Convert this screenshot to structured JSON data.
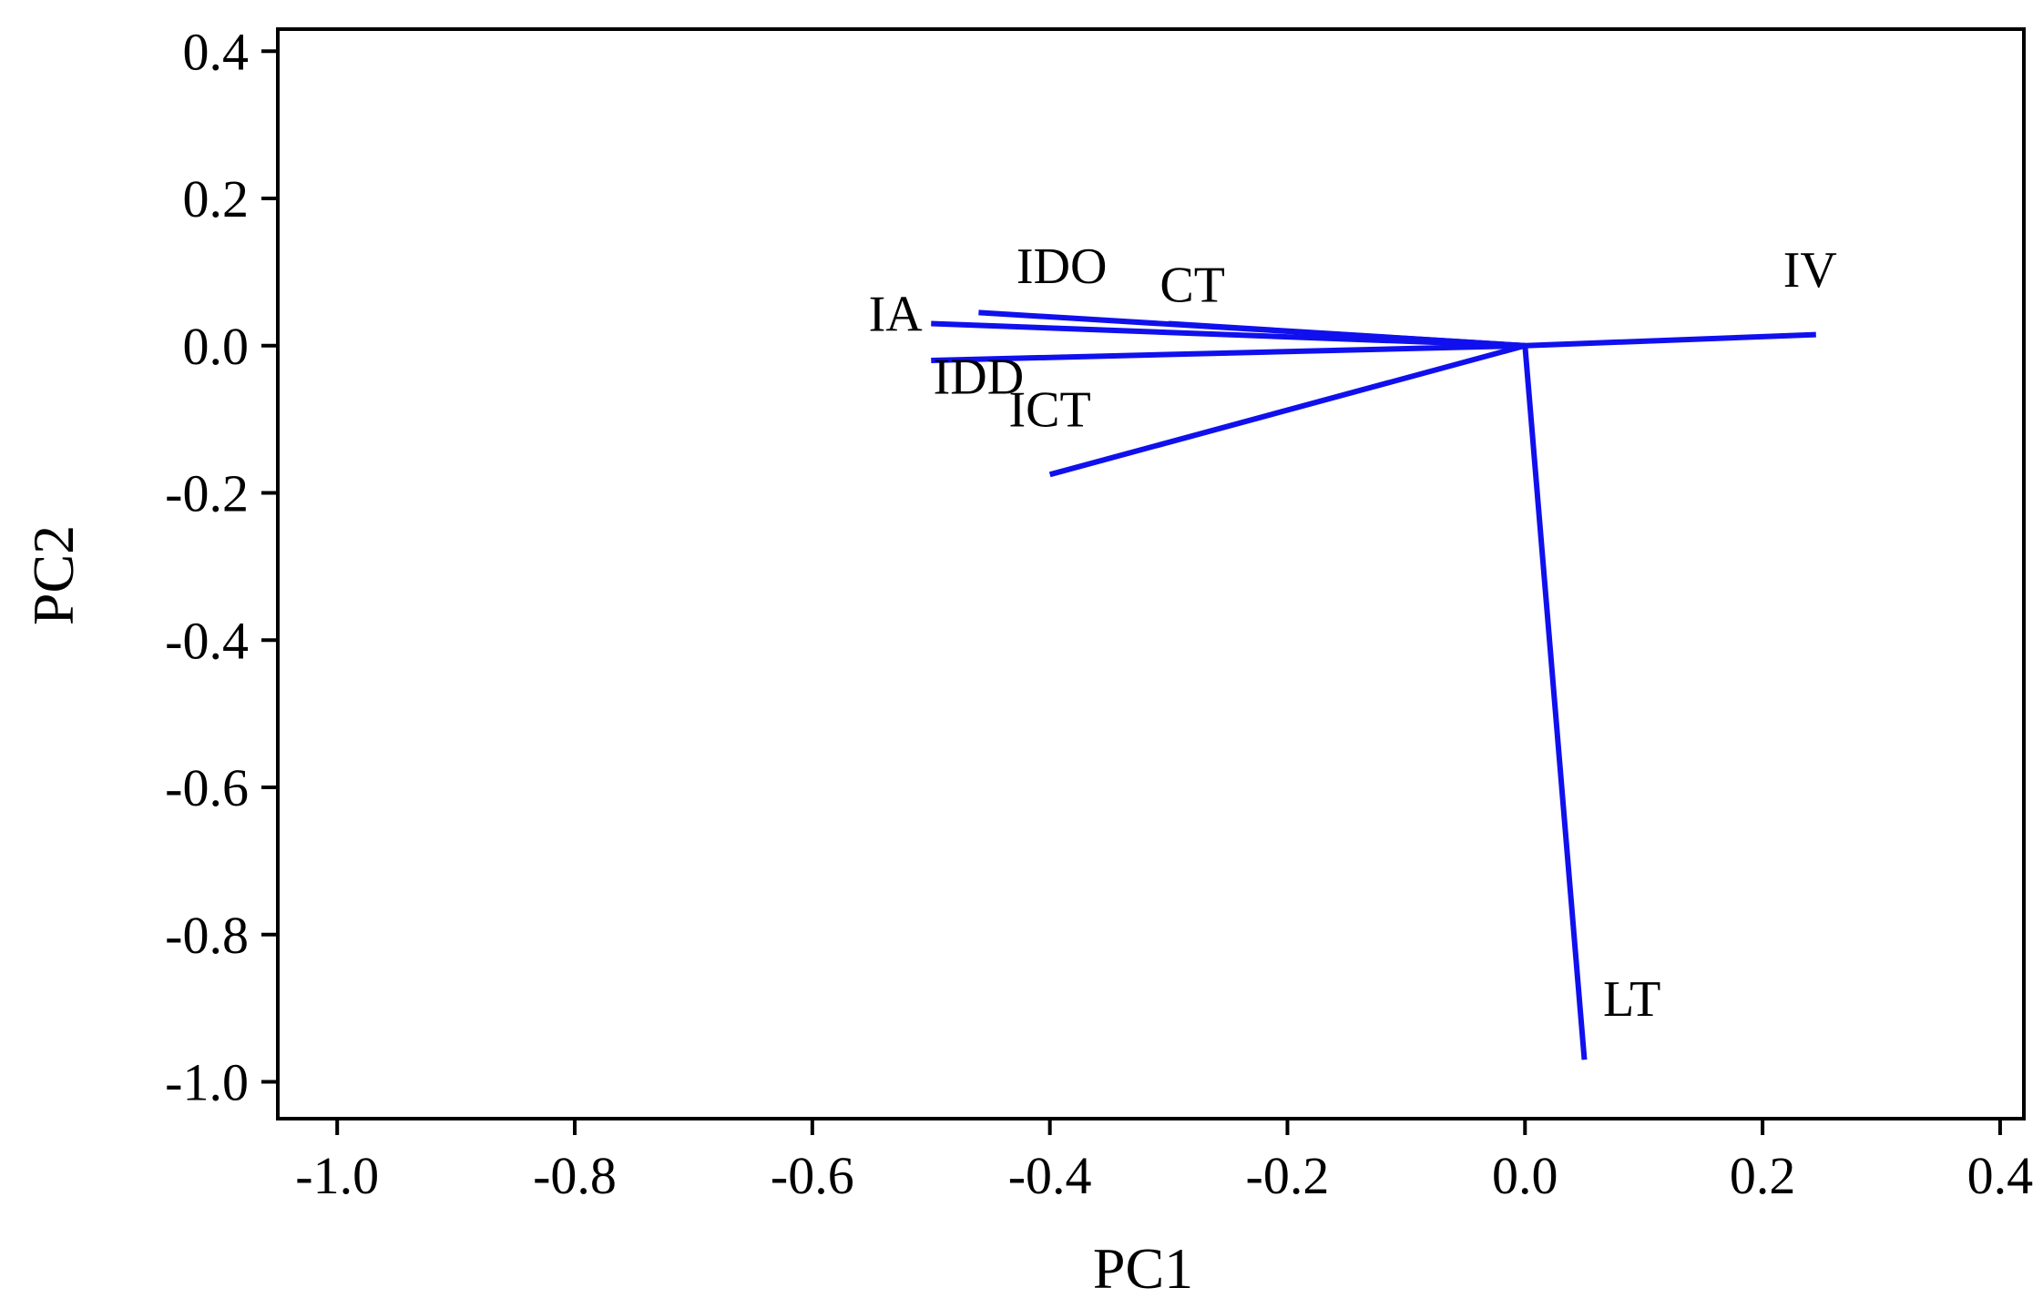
{
  "chart_data": {
    "type": "line",
    "title": "",
    "xlabel": "PC1",
    "ylabel": "PC2",
    "xlim": [
      -1.05,
      0.42
    ],
    "ylim": [
      -1.05,
      0.43
    ],
    "x_ticks": [
      {
        "value": -1.0,
        "label": "-1.0"
      },
      {
        "value": -0.8,
        "label": "-0.8"
      },
      {
        "value": -0.6,
        "label": "-0.6"
      },
      {
        "value": -0.4,
        "label": "-0.4"
      },
      {
        "value": -0.2,
        "label": "-0.2"
      },
      {
        "value": 0.0,
        "label": "0.0"
      },
      {
        "value": 0.2,
        "label": "0.2"
      },
      {
        "value": 0.4,
        "label": "0.4"
      }
    ],
    "y_ticks": [
      {
        "value": 0.4,
        "label": "0.4"
      },
      {
        "value": 0.2,
        "label": "0.2"
      },
      {
        "value": 0.0,
        "label": "0.0"
      },
      {
        "value": -0.2,
        "label": "-0.2"
      },
      {
        "value": -0.4,
        "label": "-0.4"
      },
      {
        "value": -0.6,
        "label": "-0.6"
      },
      {
        "value": -0.8,
        "label": "-0.8"
      },
      {
        "value": -1.0,
        "label": "-1.0"
      }
    ],
    "grid": false,
    "legend": "none",
    "line_color": "#1010ee",
    "vectors": [
      {
        "name": "IA",
        "x": -0.5,
        "y": 0.03,
        "label_x": -0.53,
        "label_y": 0.02
      },
      {
        "name": "IDO",
        "x": -0.46,
        "y": 0.045,
        "label_x": -0.39,
        "label_y": 0.085
      },
      {
        "name": "CT",
        "x": -0.3,
        "y": 0.03,
        "label_x": -0.28,
        "label_y": 0.06
      },
      {
        "name": "IDD",
        "x": -0.5,
        "y": -0.02,
        "label_x": -0.46,
        "label_y": -0.065
      },
      {
        "name": "ICT",
        "x": -0.4,
        "y": -0.175,
        "label_x": -0.4,
        "label_y": -0.11
      },
      {
        "name": "IV",
        "x": 0.245,
        "y": 0.015,
        "label_x": 0.24,
        "label_y": 0.08
      },
      {
        "name": "LT",
        "x": 0.05,
        "y": -0.97,
        "label_x": 0.09,
        "label_y": -0.91
      }
    ]
  }
}
